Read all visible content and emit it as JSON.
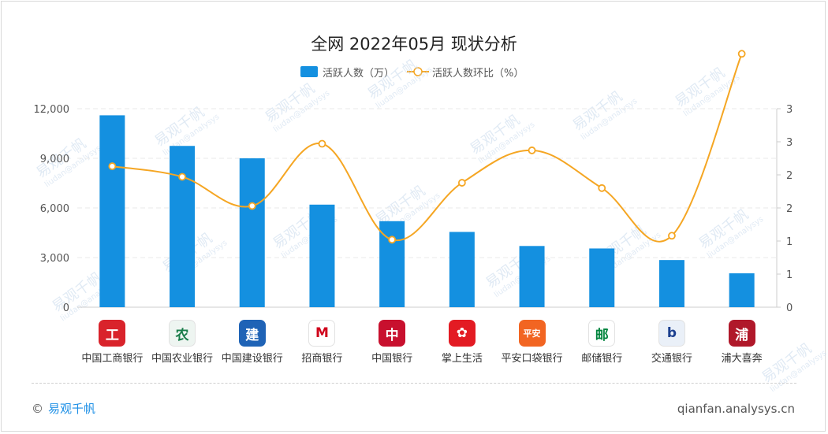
{
  "title": "全网 2022年05月 现状分析",
  "legend": {
    "bar_label": "活跃人数（万）",
    "line_label": "活跃人数环比（%）"
  },
  "colors": {
    "bar": "#1490e0",
    "line": "#f5a623",
    "grid": "#e8e8e8",
    "axis_text": "#555555"
  },
  "chart_data": {
    "type": "bar",
    "title": "全网 2022年05月 现状分析",
    "categories": [
      "中国工商银行",
      "中国农业银行",
      "中国建设银行",
      "招商银行",
      "中国银行",
      "掌上生活",
      "平安口袋银行",
      "邮储银行",
      "交通银行",
      "浦大喜奔"
    ],
    "series": [
      {
        "name": "活跃人数（万）",
        "type": "bar",
        "axis": "left",
        "values": [
          11600,
          9750,
          9000,
          6200,
          5200,
          4550,
          3700,
          3550,
          2850,
          2050
        ]
      },
      {
        "name": "活跃人数环比（%）",
        "type": "line",
        "axis": "right",
        "smooth": true,
        "values": [
          2.13,
          1.97,
          1.53,
          2.47,
          1.02,
          1.88,
          2.37,
          1.8,
          1.08,
          3.83
        ]
      }
    ],
    "y_left": {
      "min": 0,
      "max": 12000,
      "ticks": [
        0,
        3000,
        6000,
        9000,
        12000
      ],
      "tick_labels": [
        "0",
        "3,000",
        "6,000",
        "9,000",
        "12,000"
      ]
    },
    "y_right": {
      "min": 0,
      "max": 3,
      "tick_labels": [
        "0",
        "1",
        "1",
        "2",
        "2",
        "3",
        "3"
      ]
    },
    "grid": true,
    "legend_position": "top-center"
  },
  "category_icons": [
    {
      "name": "icbc-app-icon",
      "bg": "#d9232b",
      "glyph": "工"
    },
    {
      "name": "abc-app-icon",
      "bg": "#eef5f1",
      "glyph": "农"
    },
    {
      "name": "ccb-app-icon",
      "bg": "#1f63b6",
      "glyph": "建"
    },
    {
      "name": "cmb-app-icon",
      "bg": "#ffffff",
      "glyph": "M"
    },
    {
      "name": "boc-app-icon",
      "bg": "#c8102e",
      "glyph": "中"
    },
    {
      "name": "cmb-life-app-icon",
      "bg": "#e31b23",
      "glyph": "✿"
    },
    {
      "name": "pingan-app-icon",
      "bg": "#f26522",
      "glyph": "平安"
    },
    {
      "name": "psbc-app-icon",
      "bg": "#ffffff",
      "glyph": "邮"
    },
    {
      "name": "bocom-app-icon",
      "bg": "#eaf0f8",
      "glyph": "b"
    },
    {
      "name": "pufa-app-icon",
      "bg": "#b0182a",
      "glyph": "浦"
    }
  ],
  "watermark": {
    "brand": "易观千帆",
    "sub": "liudan@analysys"
  },
  "footer": {
    "copyright": "©",
    "brand": "易观千帆",
    "site": "qianfan.analysys.cn"
  }
}
